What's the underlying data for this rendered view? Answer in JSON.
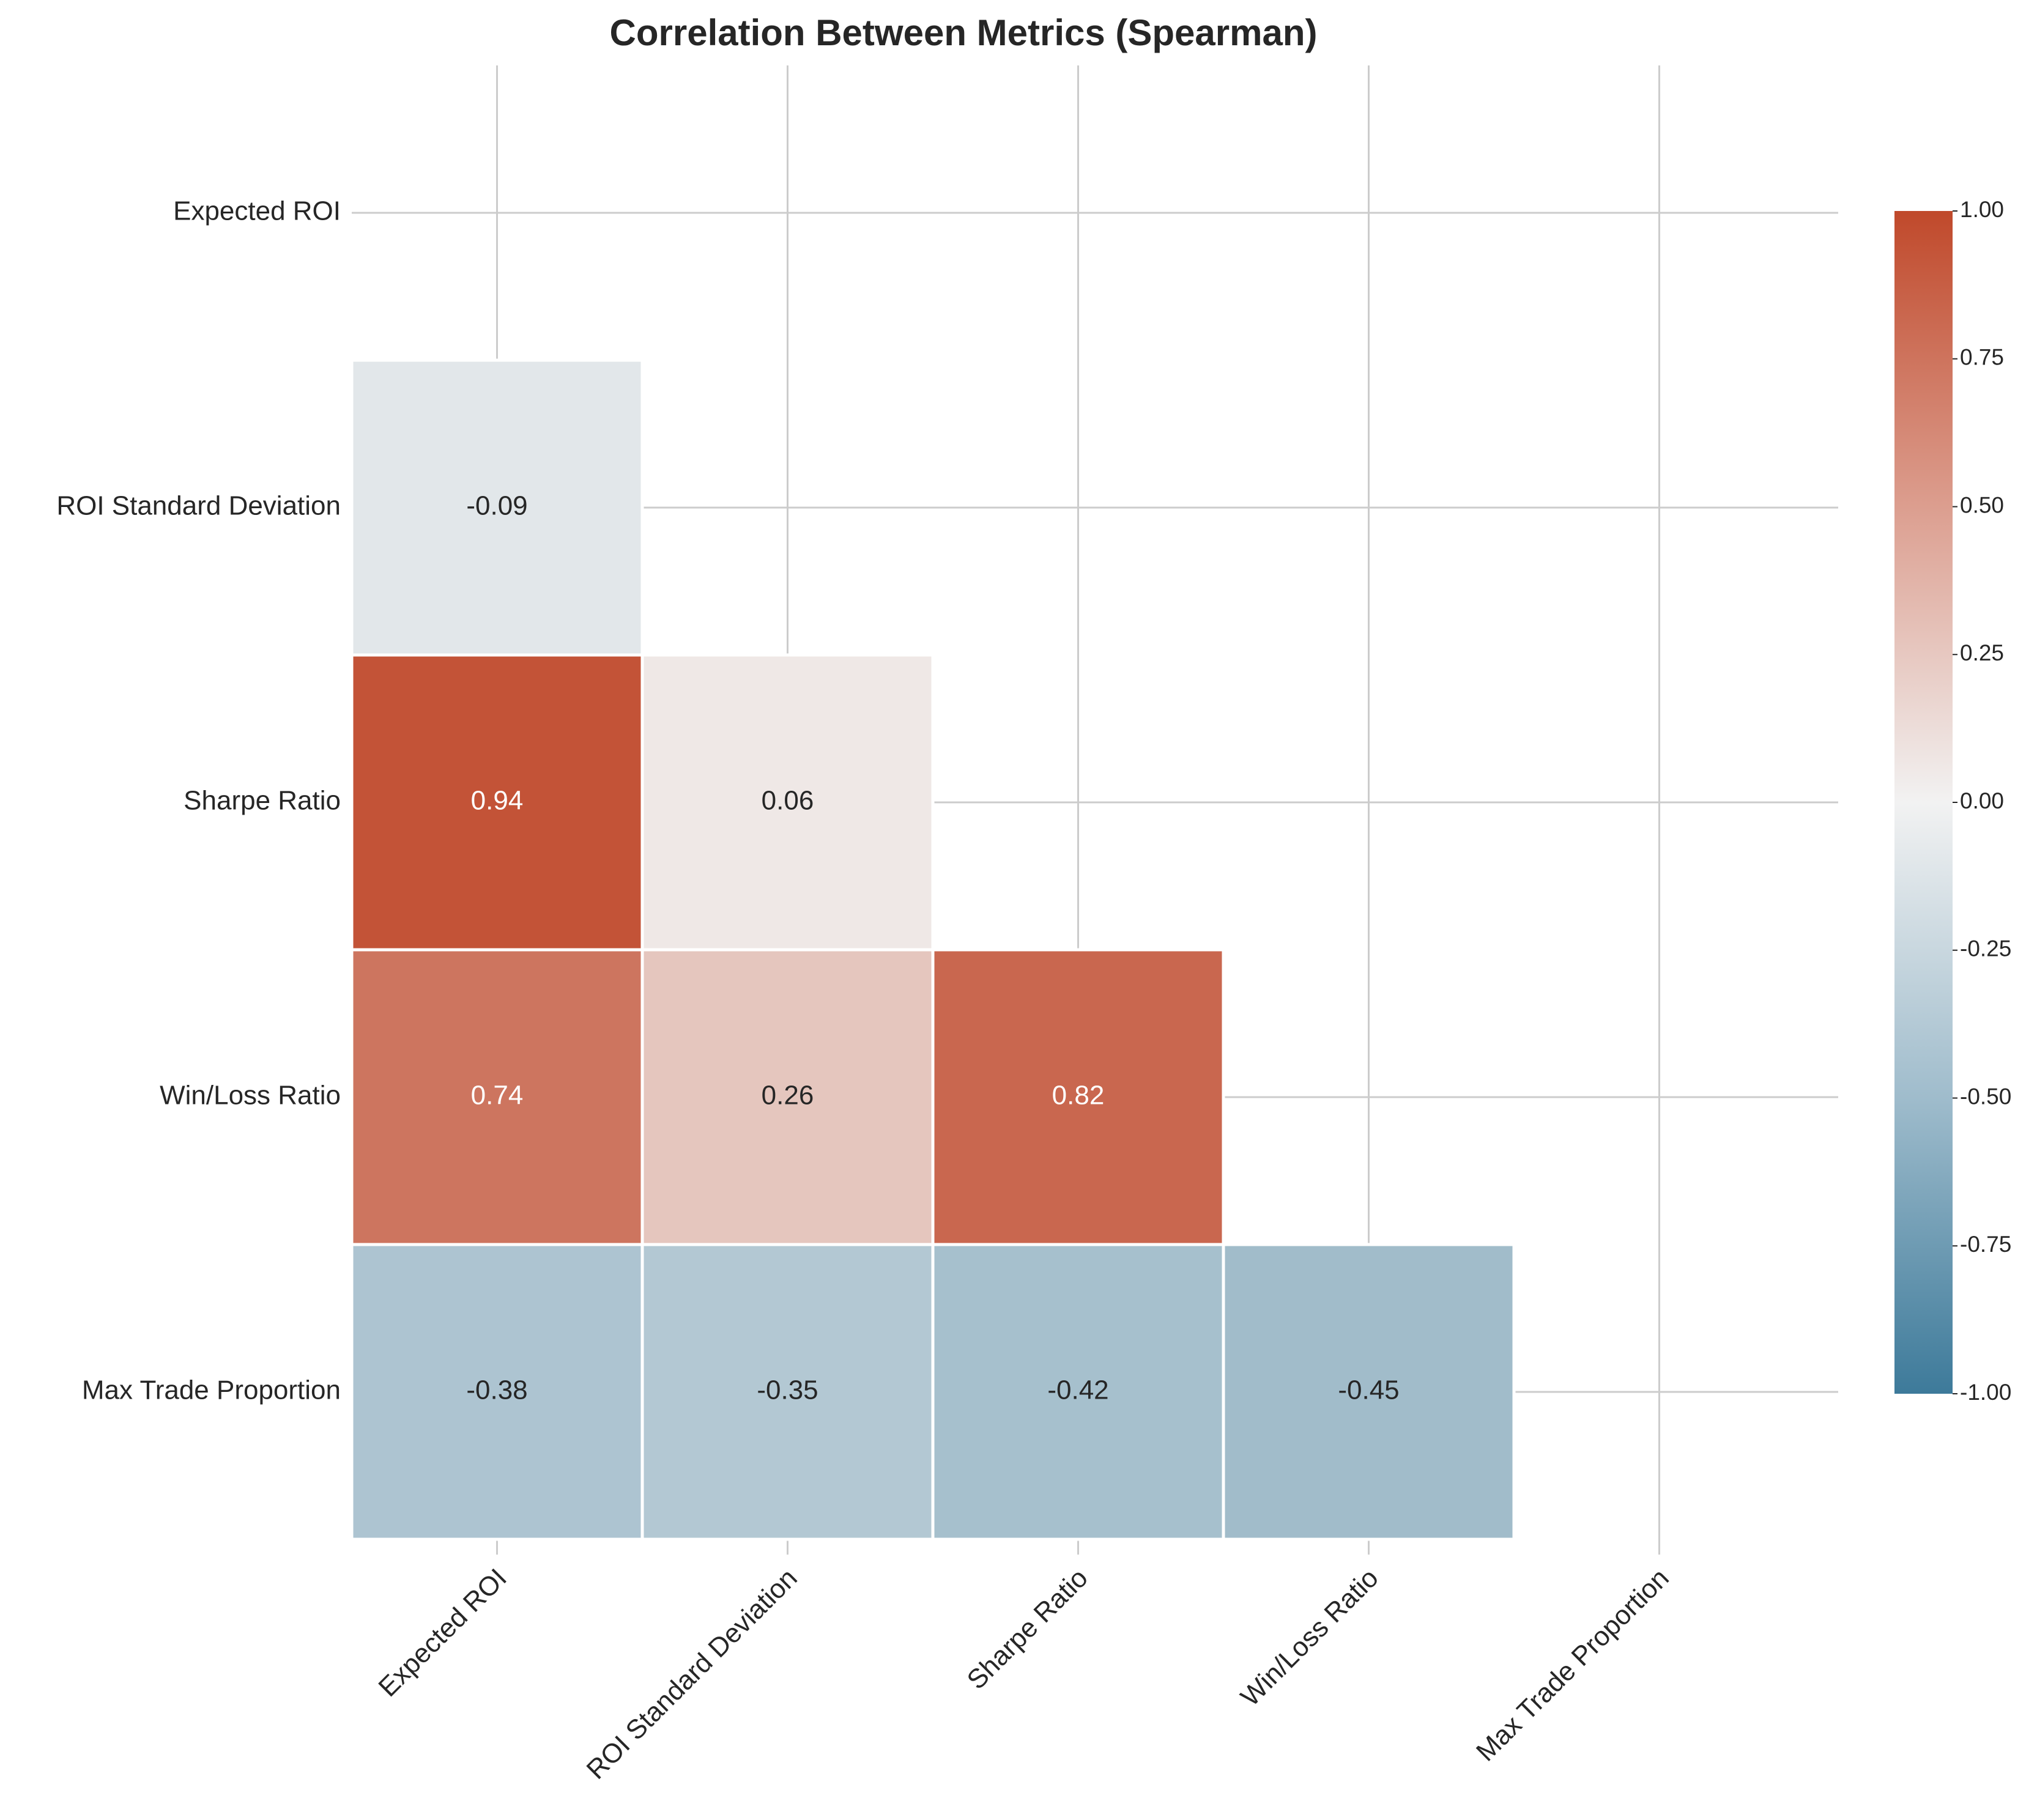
{
  "chart_data": {
    "type": "heatmap",
    "title": "Correlation Between Metrics (Spearman)",
    "xlabel": "",
    "ylabel": "",
    "labels": [
      "Expected ROI",
      "ROI Standard Deviation",
      "Sharpe Ratio",
      "Win/Loss Ratio",
      "Max Trade Proportion"
    ],
    "mask": "upper-triangle-including-diagonal",
    "cells": [
      {
        "row": 1,
        "col": 0,
        "value": -0.09,
        "label": "-0.09"
      },
      {
        "row": 2,
        "col": 0,
        "value": 0.94,
        "label": "0.94"
      },
      {
        "row": 2,
        "col": 1,
        "value": 0.06,
        "label": "0.06"
      },
      {
        "row": 3,
        "col": 0,
        "value": 0.74,
        "label": "0.74"
      },
      {
        "row": 3,
        "col": 1,
        "value": 0.26,
        "label": "0.26"
      },
      {
        "row": 3,
        "col": 2,
        "value": 0.82,
        "label": "0.82"
      },
      {
        "row": 4,
        "col": 0,
        "value": -0.38,
        "label": "-0.38"
      },
      {
        "row": 4,
        "col": 1,
        "value": -0.35,
        "label": "-0.35"
      },
      {
        "row": 4,
        "col": 2,
        "value": -0.42,
        "label": "-0.42"
      },
      {
        "row": 4,
        "col": 3,
        "value": -0.45,
        "label": "-0.45"
      }
    ],
    "colorbar": {
      "range": [
        -1.0,
        1.0
      ],
      "ticks": [
        "1.00",
        "0.75",
        "0.50",
        "0.25",
        "0.00",
        "-0.25",
        "-0.50",
        "-0.75",
        "-1.00"
      ],
      "tick_values": [
        1.0,
        0.75,
        0.5,
        0.25,
        0.0,
        -0.25,
        -0.5,
        -0.75,
        -1.0
      ],
      "colors": {
        "negative": "#3d7a9a",
        "zero": "#f2f2f2",
        "positive": "#c0492b"
      }
    },
    "grid": true,
    "grid_color": "#cccccc",
    "x_tick_rotation_deg": -45
  }
}
